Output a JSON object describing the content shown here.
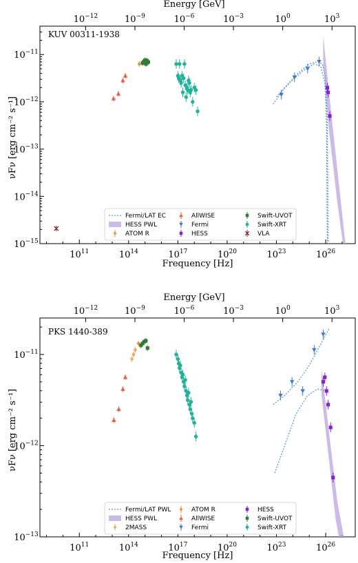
{
  "chart_data": [
    {
      "type": "scatter",
      "source_name": "KUV 00311-1938",
      "xlabel": "Frequency [Hz]",
      "ylabel": "νFν [erg cm⁻² s⁻¹]",
      "top_axis_label": "Energy [GeV]",
      "x_log_range": [
        8.6,
        27.8
      ],
      "y_log_range": [
        -15,
        -10.4
      ],
      "x_ticks": [
        "10^11",
        "10^14",
        "10^17",
        "10^20",
        "10^23",
        "10^26"
      ],
      "x_tick_exponents": [
        11,
        14,
        17,
        20,
        23,
        26
      ],
      "top_ticks": [
        "10^-12",
        "10^-9",
        "10^-6",
        "10^-3",
        "10^0",
        "10^3"
      ],
      "top_tick_exponents": [
        -12,
        -9,
        -6,
        -3,
        0,
        3
      ],
      "y_ticks": [
        "10^-11",
        "10^-12",
        "10^-13",
        "10^-14",
        "10^-15"
      ],
      "y_tick_exponents": [
        -11,
        -12,
        -13,
        -14,
        -15
      ],
      "grid": false,
      "legend_position": "bottom-center",
      "legend": [
        {
          "label": "Fermi/LAT EC",
          "kind": "dotted",
          "color": "#5b9bd5"
        },
        {
          "label": "HESS PWL",
          "kind": "band",
          "color": "#b9a3e3"
        },
        {
          "label": "ATOM R",
          "kind": "diamond",
          "color": "#f28c28"
        },
        {
          "label": "AllWISE",
          "kind": "triangle",
          "color": "#f05a3c"
        },
        {
          "label": "Fermi",
          "kind": "downtri",
          "color": "#3a78d8"
        },
        {
          "label": "HESS",
          "kind": "square",
          "color": "#8a1fd0"
        },
        {
          "label": "Swift-UVOT",
          "kind": "square",
          "color": "#2e7d32"
        },
        {
          "label": "Swift-XRT",
          "kind": "circle",
          "color": "#1fb39a"
        },
        {
          "label": "VLA",
          "kind": "cross",
          "color": "#8b1a1a"
        }
      ],
      "series": [
        {
          "name": "VLA",
          "color": "#8b1a1a",
          "marker": "cross",
          "points": [
            [
              9.6,
              -14.68
            ]
          ]
        },
        {
          "name": "AllWISE",
          "color": "#f05a3c",
          "marker": "triangle",
          "points": [
            [
              13.08,
              -11.93
            ],
            [
              13.38,
              -11.83
            ],
            [
              13.65,
              -11.55
            ],
            [
              13.8,
              -11.45
            ]
          ]
        },
        {
          "name": "ATOM R",
          "color": "#f28c28",
          "marker": "diamond",
          "points": [
            [
              14.65,
              -11.2
            ]
          ]
        },
        {
          "name": "Swift-UVOT",
          "color": "#2e7d32",
          "marker": "square",
          "points": [
            [
              14.85,
              -11.18
            ],
            [
              14.92,
              -11.15
            ],
            [
              15.0,
              -11.12
            ],
            [
              15.06,
              -11.2
            ],
            [
              15.12,
              -11.13
            ],
            [
              15.2,
              -11.16
            ]
          ]
        },
        {
          "name": "Swift-XRT",
          "color": "#1fb39a",
          "marker": "circle",
          "points": [
            [
              16.9,
              -11.2
            ],
            [
              17.0,
              -11.45
            ],
            [
              17.05,
              -11.5
            ],
            [
              17.1,
              -11.2
            ],
            [
              17.15,
              -11.55
            ],
            [
              17.2,
              -11.6
            ],
            [
              17.25,
              -11.45
            ],
            [
              17.3,
              -11.8
            ],
            [
              17.35,
              -11.5
            ],
            [
              17.4,
              -11.2
            ],
            [
              17.45,
              -11.65
            ],
            [
              17.5,
              -11.9
            ],
            [
              17.55,
              -11.7
            ],
            [
              17.6,
              -11.75
            ],
            [
              17.65,
              -11.55
            ],
            [
              17.7,
              -11.6
            ],
            [
              17.75,
              -11.8
            ],
            [
              17.8,
              -11.75
            ],
            [
              17.9,
              -12.0
            ],
            [
              18.0,
              -11.7
            ],
            [
              18.1,
              -11.75
            ],
            [
              18.2,
              -12.2
            ]
          ]
        },
        {
          "name": "Fermi",
          "color": "#3a78d8",
          "marker": "downtri",
          "points": [
            [
              23.3,
              -11.85
            ],
            [
              24.1,
              -11.48
            ],
            [
              24.9,
              -11.3
            ],
            [
              25.6,
              -11.15
            ]
          ]
        },
        {
          "name": "HESS",
          "color": "#8a1fd0",
          "marker": "square",
          "points": [
            [
              26.1,
              -11.7
            ],
            [
              26.15,
              -11.8
            ],
            [
              26.25,
              -12.3
            ]
          ]
        }
      ],
      "model_curves": [
        {
          "name": "Fermi/LAT EC",
          "color": "#5b9bd5",
          "style": "dotted",
          "points": [
            [
              22.8,
              -12.05
            ],
            [
              23.5,
              -11.7
            ],
            [
              24.3,
              -11.4
            ],
            [
              25.0,
              -11.2
            ],
            [
              25.5,
              -11.15
            ],
            [
              25.8,
              -11.2
            ],
            [
              26.0,
              -11.5
            ],
            [
              26.1,
              -12.5
            ],
            [
              26.15,
              -15.0
            ]
          ]
        },
        {
          "name": "Fermi/LAT EC",
          "color": "#5b9bd5",
          "style": "dotted",
          "points": [
            [
              23.0,
              -11.9
            ],
            [
              23.8,
              -11.6
            ],
            [
              24.6,
              -11.35
            ],
            [
              25.3,
              -11.2
            ],
            [
              25.7,
              -11.25
            ],
            [
              25.95,
              -11.6
            ],
            [
              26.05,
              -12.4
            ],
            [
              26.1,
              -15.0
            ]
          ]
        }
      ],
      "band": {
        "name": "HESS PWL",
        "color": "#b9a3e3",
        "upper": [
          [
            25.85,
            -10.6
          ],
          [
            26.2,
            -11.8
          ],
          [
            26.7,
            -13.4
          ],
          [
            27.2,
            -15.0
          ]
        ],
        "lower": [
          [
            25.85,
            -11.2
          ],
          [
            26.2,
            -12.6
          ],
          [
            26.7,
            -14.1
          ],
          [
            27.05,
            -15.0
          ]
        ]
      }
    },
    {
      "type": "scatter",
      "source_name": "PKS 1440-389",
      "xlabel": "Frequency [Hz]",
      "ylabel": "νFν [erg cm⁻² s⁻¹]",
      "top_axis_label": "Energy [GeV]",
      "x_log_range": [
        8.6,
        27.8
      ],
      "y_log_range": [
        -13,
        -10.6
      ],
      "x_ticks": [
        "10^11",
        "10^14",
        "10^17",
        "10^20",
        "10^23",
        "10^26"
      ],
      "x_tick_exponents": [
        11,
        14,
        17,
        20,
        23,
        26
      ],
      "top_ticks": [
        "10^-12",
        "10^-9",
        "10^-6",
        "10^-3",
        "10^0",
        "10^3"
      ],
      "top_tick_exponents": [
        -12,
        -9,
        -6,
        -3,
        0,
        3
      ],
      "y_ticks": [
        "10^-11",
        "10^-12",
        "10^-13"
      ],
      "y_tick_exponents": [
        -11,
        -12,
        -13
      ],
      "grid": false,
      "legend_position": "bottom-center",
      "legend": [
        {
          "label": "Fermi/LAT PWL",
          "kind": "dotted",
          "color": "#5b9bd5"
        },
        {
          "label": "HESS PWL",
          "kind": "band",
          "color": "#b9a3e3"
        },
        {
          "label": "2MASS",
          "kind": "diamond",
          "color": "#f5a55a"
        },
        {
          "label": "ATOM R",
          "kind": "diamond",
          "color": "#f28c28"
        },
        {
          "label": "AllWISE",
          "kind": "triangle",
          "color": "#f05a3c"
        },
        {
          "label": "Fermi",
          "kind": "downtri",
          "color": "#3a78d8"
        },
        {
          "label": "HESS",
          "kind": "square",
          "color": "#8a1fd0"
        },
        {
          "label": "Swift-UVOT",
          "kind": "square",
          "color": "#2e7d32"
        },
        {
          "label": "Swift-XRT",
          "kind": "circle",
          "color": "#1fb39a"
        }
      ],
      "series": [
        {
          "name": "AllWISE",
          "color": "#f05a3c",
          "marker": "triangle",
          "points": [
            [
              13.1,
              -11.72
            ],
            [
              13.4,
              -11.6
            ],
            [
              13.65,
              -11.38
            ],
            [
              13.8,
              -11.25
            ]
          ]
        },
        {
          "name": "2MASS",
          "color": "#f5a55a",
          "marker": "diamond",
          "points": [
            [
              14.2,
              -11.05
            ],
            [
              14.3,
              -11.0
            ],
            [
              14.4,
              -10.95
            ]
          ]
        },
        {
          "name": "ATOM R",
          "color": "#f28c28",
          "marker": "diamond",
          "points": [
            [
              14.6,
              -10.88
            ]
          ]
        },
        {
          "name": "Swift-UVOT",
          "color": "#2e7d32",
          "marker": "square",
          "points": [
            [
              14.75,
              -10.9
            ],
            [
              14.85,
              -10.88
            ],
            [
              14.95,
              -10.86
            ],
            [
              15.05,
              -10.85
            ],
            [
              15.15,
              -10.93
            ]
          ]
        },
        {
          "name": "Swift-XRT",
          "color": "#1fb39a",
          "marker": "circle",
          "points": [
            [
              16.9,
              -11.0
            ],
            [
              17.0,
              -11.05
            ],
            [
              17.05,
              -11.1
            ],
            [
              17.1,
              -11.15
            ],
            [
              17.15,
              -11.12
            ],
            [
              17.2,
              -11.2
            ],
            [
              17.25,
              -11.25
            ],
            [
              17.3,
              -11.22
            ],
            [
              17.35,
              -11.3
            ],
            [
              17.4,
              -11.35
            ],
            [
              17.45,
              -11.28
            ],
            [
              17.5,
              -11.4
            ],
            [
              17.55,
              -11.45
            ],
            [
              17.6,
              -11.5
            ],
            [
              17.65,
              -11.42
            ],
            [
              17.7,
              -11.55
            ],
            [
              17.75,
              -11.6
            ],
            [
              17.8,
              -11.52
            ],
            [
              17.85,
              -11.65
            ],
            [
              17.9,
              -11.7
            ],
            [
              18.0,
              -11.75
            ],
            [
              18.1,
              -11.9
            ]
          ]
        },
        {
          "name": "Fermi",
          "color": "#3a78d8",
          "marker": "downtri",
          "points": [
            [
              23.25,
              -11.45
            ],
            [
              23.95,
              -11.3
            ],
            [
              24.6,
              -11.4
            ],
            [
              25.3,
              -10.95
            ],
            [
              25.85,
              -10.78
            ]
          ]
        },
        {
          "name": "HESS",
          "color": "#8a1fd0",
          "marker": "square",
          "points": [
            [
              25.85,
              -11.3
            ],
            [
              25.95,
              -11.25
            ],
            [
              26.05,
              -11.4
            ],
            [
              26.15,
              -11.55
            ],
            [
              26.3,
              -11.8
            ],
            [
              26.45,
              -12.35
            ]
          ]
        }
      ],
      "model_curves": [
        {
          "name": "Fermi/LAT PWL",
          "color": "#5b9bd5",
          "style": "dotted",
          "points": [
            [
              22.8,
              -11.55
            ],
            [
              23.5,
              -11.45
            ],
            [
              24.3,
              -11.3
            ],
            [
              25.0,
              -11.12
            ],
            [
              25.6,
              -10.92
            ],
            [
              26.2,
              -10.72
            ]
          ]
        },
        {
          "name": "Fermi/LAT PWL",
          "color": "#5b9bd5",
          "style": "dotted",
          "points": [
            [
              22.9,
              -12.3
            ],
            [
              23.5,
              -12.0
            ],
            [
              24.2,
              -11.65
            ],
            [
              24.9,
              -11.45
            ],
            [
              25.5,
              -11.38
            ],
            [
              26.0,
              -11.4
            ]
          ]
        }
      ],
      "band": {
        "name": "HESS PWL",
        "color": "#b9a3e3",
        "upper": [
          [
            25.75,
            -11.15
          ],
          [
            26.2,
            -11.85
          ],
          [
            26.7,
            -12.6
          ],
          [
            27.1,
            -13.0
          ]
        ],
        "lower": [
          [
            25.75,
            -11.45
          ],
          [
            26.2,
            -12.15
          ],
          [
            26.6,
            -12.8
          ],
          [
            26.8,
            -13.0
          ]
        ]
      }
    }
  ]
}
